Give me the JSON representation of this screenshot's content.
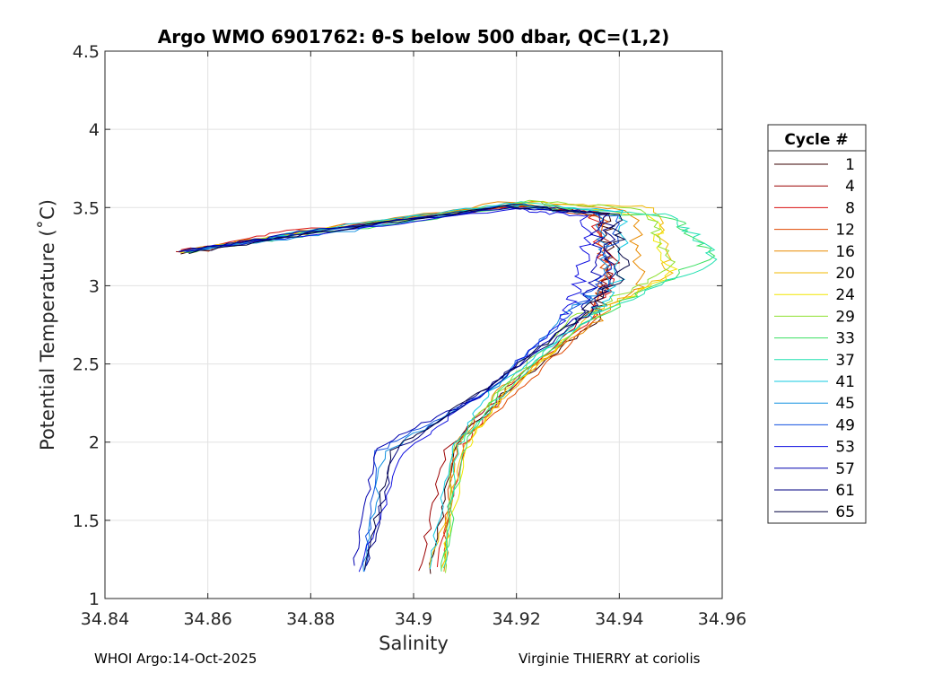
{
  "chart_data": {
    "type": "line",
    "title": "Argo WMO 6901762: θ-S below 500 dbar,  QC=(1,2)",
    "xlabel": "Salinity",
    "ylabel": "Potential Temperature (˚C)",
    "xlim": [
      34.84,
      34.96
    ],
    "ylim": [
      1,
      4.5
    ],
    "xticks": [
      34.84,
      34.86,
      34.88,
      34.9,
      34.92,
      34.94,
      34.96
    ],
    "xtick_labels": [
      "34.84",
      "34.86",
      "34.88",
      "34.9",
      "34.92",
      "34.94",
      "34.96"
    ],
    "yticks": [
      1,
      1.5,
      2,
      2.5,
      3,
      3.5,
      4,
      4.5
    ],
    "ytick_labels": [
      "1",
      "1.5",
      "2",
      "2.5",
      "3",
      "3.5",
      "4",
      "4.5"
    ],
    "grid": true,
    "legend": {
      "title": "Cycle #",
      "placement": "right-outside",
      "entries": [
        "1",
        "4",
        "8",
        "12",
        "16",
        "20",
        "24",
        "29",
        "33",
        "37",
        "41",
        "45",
        "49",
        "53",
        "57",
        "61",
        "65"
      ],
      "colors": [
        "#3a0000",
        "#9a0000",
        "#d81010",
        "#e04800",
        "#e88a00",
        "#f0b800",
        "#f2e600",
        "#8ee030",
        "#3ae060",
        "#20e0b0",
        "#10c8e0",
        "#1090e0",
        "#1050e0",
        "#1010e0",
        "#0000b0",
        "#000080",
        "#000040"
      ]
    },
    "series_shape": {
      "description_points": [
        [
          34.855,
          3.21
        ],
        [
          34.88,
          3.34
        ],
        [
          34.92,
          3.51
        ],
        [
          34.935,
          3.45
        ],
        [
          34.935,
          3.0
        ],
        [
          34.932,
          2.7
        ],
        [
          34.915,
          2.3
        ],
        [
          34.9,
          1.9
        ],
        [
          34.89,
          1.2
        ]
      ]
    },
    "series": [
      {
        "cycle": 1,
        "values": [
          [
            34.855,
            3.212
          ],
          [
            34.878,
            3.345
          ],
          [
            34.92,
            3.518
          ],
          [
            34.937,
            3.448
          ],
          [
            34.938,
            3.085
          ],
          [
            34.935,
            2.76
          ],
          [
            34.9183,
            2.339
          ],
          [
            34.908,
            1.99
          ],
          [
            34.9033,
            1.158
          ]
        ]
      },
      {
        "cycle": 4,
        "values": [
          [
            34.854,
            3.209
          ],
          [
            34.8812,
            3.35
          ],
          [
            34.9197,
            3.511
          ],
          [
            34.9365,
            3.46
          ],
          [
            34.9391,
            3.096
          ],
          [
            34.9335,
            2.797
          ],
          [
            34.9182,
            2.347
          ],
          [
            34.9063,
            1.947
          ],
          [
            34.901,
            1.177
          ]
        ]
      },
      {
        "cycle": 8,
        "values": [
          [
            34.8549,
            3.223
          ],
          [
            34.8774,
            3.354
          ],
          [
            34.9195,
            3.515
          ],
          [
            34.9346,
            3.476
          ],
          [
            34.9382,
            3.006
          ],
          [
            34.9345,
            2.79
          ],
          [
            34.9175,
            2.304
          ],
          [
            34.9097,
            1.982
          ],
          [
            34.9046,
            1.201
          ]
        ]
      },
      {
        "cycle": 12,
        "values": [
          [
            34.8568,
            3.215
          ],
          [
            34.8766,
            3.324
          ],
          [
            34.9183,
            3.522
          ],
          [
            34.9368,
            3.439
          ],
          [
            34.9374,
            3.038
          ],
          [
            34.9352,
            2.783
          ],
          [
            34.9193,
            2.298
          ],
          [
            34.9081,
            1.972
          ],
          [
            34.9055,
            1.203
          ]
        ]
      },
      {
        "cycle": 16,
        "values": [
          [
            34.8553,
            3.219
          ],
          [
            34.8799,
            3.354
          ],
          [
            34.9194,
            3.541
          ],
          [
            34.9423,
            3.488
          ],
          [
            34.9446,
            3.017
          ],
          [
            34.9352,
            2.765
          ],
          [
            34.9165,
            2.33
          ],
          [
            34.9081,
            1.981
          ],
          [
            34.9059,
            1.172
          ]
        ]
      },
      {
        "cycle": 20,
        "values": [
          [
            34.8554,
            3.222
          ],
          [
            34.8787,
            3.343
          ],
          [
            34.9211,
            3.535
          ],
          [
            34.9477,
            3.499
          ],
          [
            34.9499,
            3.083
          ],
          [
            34.9339,
            2.794
          ],
          [
            34.9179,
            2.298
          ],
          [
            34.9103,
            1.988
          ],
          [
            34.9031,
            1.197
          ]
        ]
      },
      {
        "cycle": 24,
        "values": [
          [
            34.8546,
            3.214
          ],
          [
            34.8806,
            3.349
          ],
          [
            34.9214,
            3.525
          ],
          [
            34.9462,
            3.449
          ],
          [
            34.9503,
            3.088
          ],
          [
            34.934,
            2.781
          ],
          [
            34.9173,
            2.312
          ],
          [
            34.9102,
            1.957
          ],
          [
            34.9054,
            1.191
          ]
        ]
      },
      {
        "cycle": 29,
        "values": [
          [
            34.8566,
            3.214
          ],
          [
            34.8793,
            3.343
          ],
          [
            34.923,
            3.538
          ],
          [
            34.9452,
            3.488
          ],
          [
            34.9507,
            3.116
          ],
          [
            34.931,
            2.79
          ],
          [
            34.9163,
            2.315
          ],
          [
            34.9077,
            1.979
          ],
          [
            34.9062,
            1.164
          ]
        ]
      },
      {
        "cycle": 33,
        "values": [
          [
            34.8556,
            3.22
          ],
          [
            34.8823,
            3.335
          ],
          [
            34.921,
            3.509
          ],
          [
            34.951,
            3.43
          ],
          [
            34.958,
            3.194
          ],
          [
            34.9341,
            2.778
          ],
          [
            34.9175,
            2.344
          ],
          [
            34.9097,
            1.976
          ],
          [
            34.9054,
            1.173
          ]
        ]
      },
      {
        "cycle": 37,
        "values": [
          [
            34.8563,
            3.22
          ],
          [
            34.8791,
            3.344
          ],
          [
            34.9203,
            3.531
          ],
          [
            34.9505,
            3.445
          ],
          [
            34.9593,
            3.165
          ],
          [
            34.9316,
            2.78
          ],
          [
            34.9177,
            2.313
          ],
          [
            34.9087,
            1.987
          ],
          [
            34.9058,
            1.194
          ]
        ]
      },
      {
        "cycle": 41,
        "values": [
          [
            34.8551,
            3.206
          ],
          [
            34.879,
            3.347
          ],
          [
            34.9182,
            3.525
          ],
          [
            34.9409,
            3.474
          ],
          [
            34.9396,
            3.005
          ],
          [
            34.9337,
            2.778
          ],
          [
            34.9151,
            2.335
          ],
          [
            34.9075,
            1.967
          ],
          [
            34.9032,
            1.189
          ]
        ]
      },
      {
        "cycle": 45,
        "values": [
          [
            34.8567,
            3.22
          ],
          [
            34.883,
            3.331
          ],
          [
            34.9184,
            3.508
          ],
          [
            34.9359,
            3.456
          ],
          [
            34.9374,
            3.0
          ],
          [
            34.9288,
            2.794
          ],
          [
            34.9151,
            2.327
          ],
          [
            34.8942,
            1.939
          ],
          [
            34.8903,
            1.171
          ]
        ]
      },
      {
        "cycle": 49,
        "values": [
          [
            34.8562,
            3.222
          ],
          [
            34.878,
            3.328
          ],
          [
            34.9175,
            3.507
          ],
          [
            34.9397,
            3.448
          ],
          [
            34.9371,
            3.059
          ],
          [
            34.9298,
            2.8
          ],
          [
            34.913,
            2.296
          ],
          [
            34.893,
            1.939
          ],
          [
            34.8904,
            1.174
          ]
        ]
      },
      {
        "cycle": 53,
        "values": [
          [
            34.8541,
            3.219
          ],
          [
            34.8803,
            3.326
          ],
          [
            34.9197,
            3.49
          ],
          [
            34.9337,
            3.441
          ],
          [
            34.9327,
            3.052
          ],
          [
            34.9291,
            2.769
          ],
          [
            34.914,
            2.328
          ],
          [
            34.8982,
            1.938
          ],
          [
            34.8894,
            1.171
          ]
        ]
      },
      {
        "cycle": 57,
        "values": [
          [
            34.8552,
            3.221
          ],
          [
            34.8795,
            3.353
          ],
          [
            34.919,
            3.496
          ],
          [
            34.9356,
            3.468
          ],
          [
            34.9359,
            3.069
          ],
          [
            34.9314,
            2.789
          ],
          [
            34.9143,
            2.318
          ],
          [
            34.8928,
            1.964
          ],
          [
            34.8885,
            1.21
          ]
        ]
      },
      {
        "cycle": 61,
        "values": [
          [
            34.8549,
            3.222
          ],
          [
            34.8805,
            3.344
          ],
          [
            34.919,
            3.519
          ],
          [
            34.9374,
            3.466
          ],
          [
            34.9389,
            3.053
          ],
          [
            34.932,
            2.759
          ],
          [
            34.9145,
            2.348
          ],
          [
            34.8965,
            1.95
          ],
          [
            34.8908,
            1.209
          ]
        ]
      },
      {
        "cycle": 65,
        "values": [
          [
            34.8568,
            3.211
          ],
          [
            34.8808,
            3.338
          ],
          [
            34.9181,
            3.513
          ],
          [
            34.9392,
            3.453
          ],
          [
            34.941,
            3.083
          ],
          [
            34.9322,
            2.797
          ],
          [
            34.9141,
            2.343
          ],
          [
            34.8959,
            1.944
          ],
          [
            34.8905,
            1.185
          ]
        ]
      }
    ]
  },
  "footer": {
    "left": "WHOI Argo:14-Oct-2025",
    "right": "Virginie THIERRY at coriolis"
  }
}
